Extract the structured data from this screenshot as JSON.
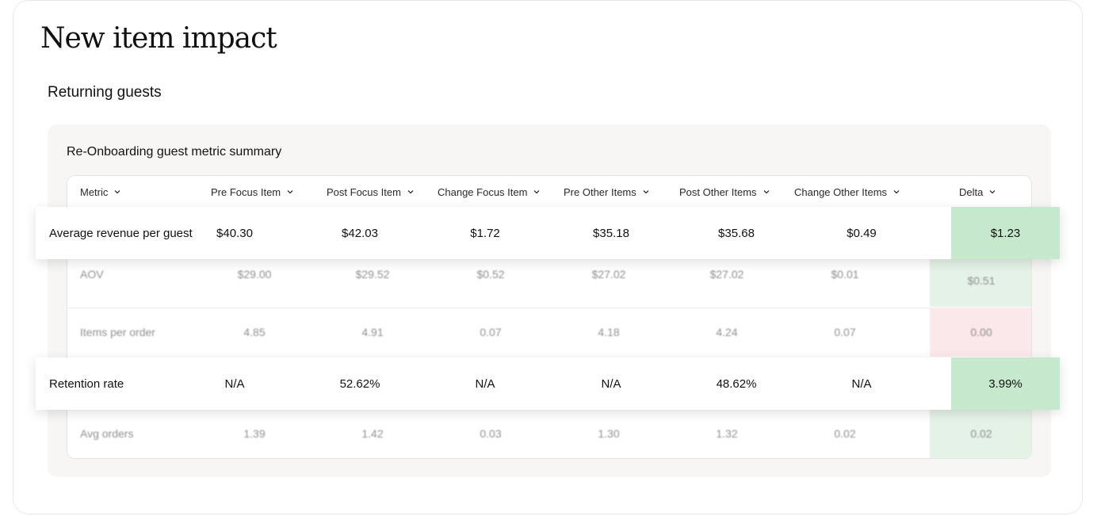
{
  "page_title": "New item impact",
  "section_title": "Returning guests",
  "panel_title": "Re-Onboarding guest metric summary",
  "columns": [
    {
      "label": "Metric"
    },
    {
      "label": "Pre Focus Item"
    },
    {
      "label": "Post Focus Item"
    },
    {
      "label": "Change Focus Item"
    },
    {
      "label": "Pre Other Items"
    },
    {
      "label": "Post Other Items"
    },
    {
      "label": "Change Other Items"
    },
    {
      "label": "Delta"
    }
  ],
  "highlighted_rows": [
    {
      "metric": "Average revenue per guest",
      "pre_focus": "$40.30",
      "post_focus": "$42.03",
      "change_focus": "$1.72",
      "pre_other": "$35.18",
      "post_other": "$35.68",
      "change_other": "$0.49",
      "delta": "$1.23",
      "delta_color": "#c6e8cc"
    },
    {
      "metric": "Retention rate",
      "pre_focus": "N/A",
      "post_focus": "52.62%",
      "change_focus": "N/A",
      "pre_other": "N/A",
      "post_other": "48.62%",
      "change_other": "N/A",
      "delta": "3.99%",
      "delta_color": "#c6e8cc"
    }
  ],
  "background_rows": [
    {
      "metric": "AOV",
      "pre_focus": "$29.00",
      "post_focus": "$29.52",
      "change_focus": "$0.52",
      "pre_other": "$27.02",
      "post_other": "$27.02",
      "change_other": "$0.01",
      "delta": "$0.51",
      "delta_color": "#cfe9d4"
    },
    {
      "metric": "Items per order",
      "pre_focus": "4.85",
      "post_focus": "4.91",
      "change_focus": "0.07",
      "pre_other": "4.18",
      "post_other": "4.24",
      "change_other": "0.07",
      "delta": "0.00",
      "delta_color": "#f6d6da"
    },
    {
      "metric": "Avg orders",
      "pre_focus": "1.39",
      "post_focus": "1.42",
      "change_focus": "0.03",
      "pre_other": "1.30",
      "post_other": "1.32",
      "change_other": "0.02",
      "delta": "0.02",
      "delta_color": "#cfe9d4"
    }
  ],
  "icons": {
    "sort": "chevron-down-icon"
  }
}
